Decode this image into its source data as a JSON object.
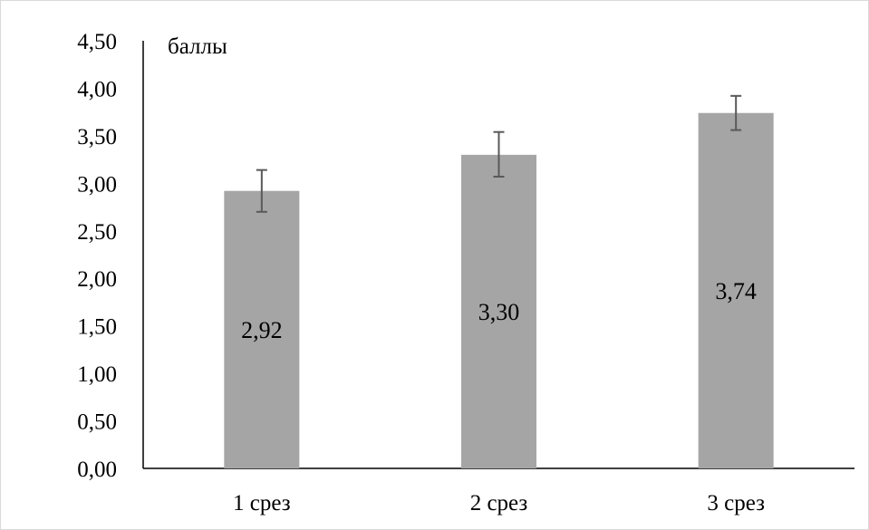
{
  "chart_data": {
    "type": "bar",
    "ylabel": "баллы",
    "categories": [
      "1 срез",
      "2 срез",
      "3 срез"
    ],
    "values": [
      2.92,
      3.3,
      3.74
    ],
    "value_labels": [
      "2,92",
      "3,30",
      "3,74"
    ],
    "error_bars": [
      {
        "low": 2.7,
        "high": 3.14
      },
      {
        "low": 3.07,
        "high": 3.54
      },
      {
        "low": 3.56,
        "high": 3.92
      }
    ],
    "ylim": [
      0,
      4.5
    ],
    "yticks": [
      0,
      0.5,
      1.0,
      1.5,
      2.0,
      2.5,
      3.0,
      3.5,
      4.0,
      4.5
    ],
    "ytick_labels": [
      "0,00",
      "0,50",
      "1,00",
      "1,50",
      "2,00",
      "2,50",
      "3,00",
      "3,50",
      "4,00",
      "4,50"
    ],
    "grid": false,
    "colors": {
      "bar": "#a5a5a5",
      "axis": "#000000",
      "error_bar": "#595959"
    }
  }
}
